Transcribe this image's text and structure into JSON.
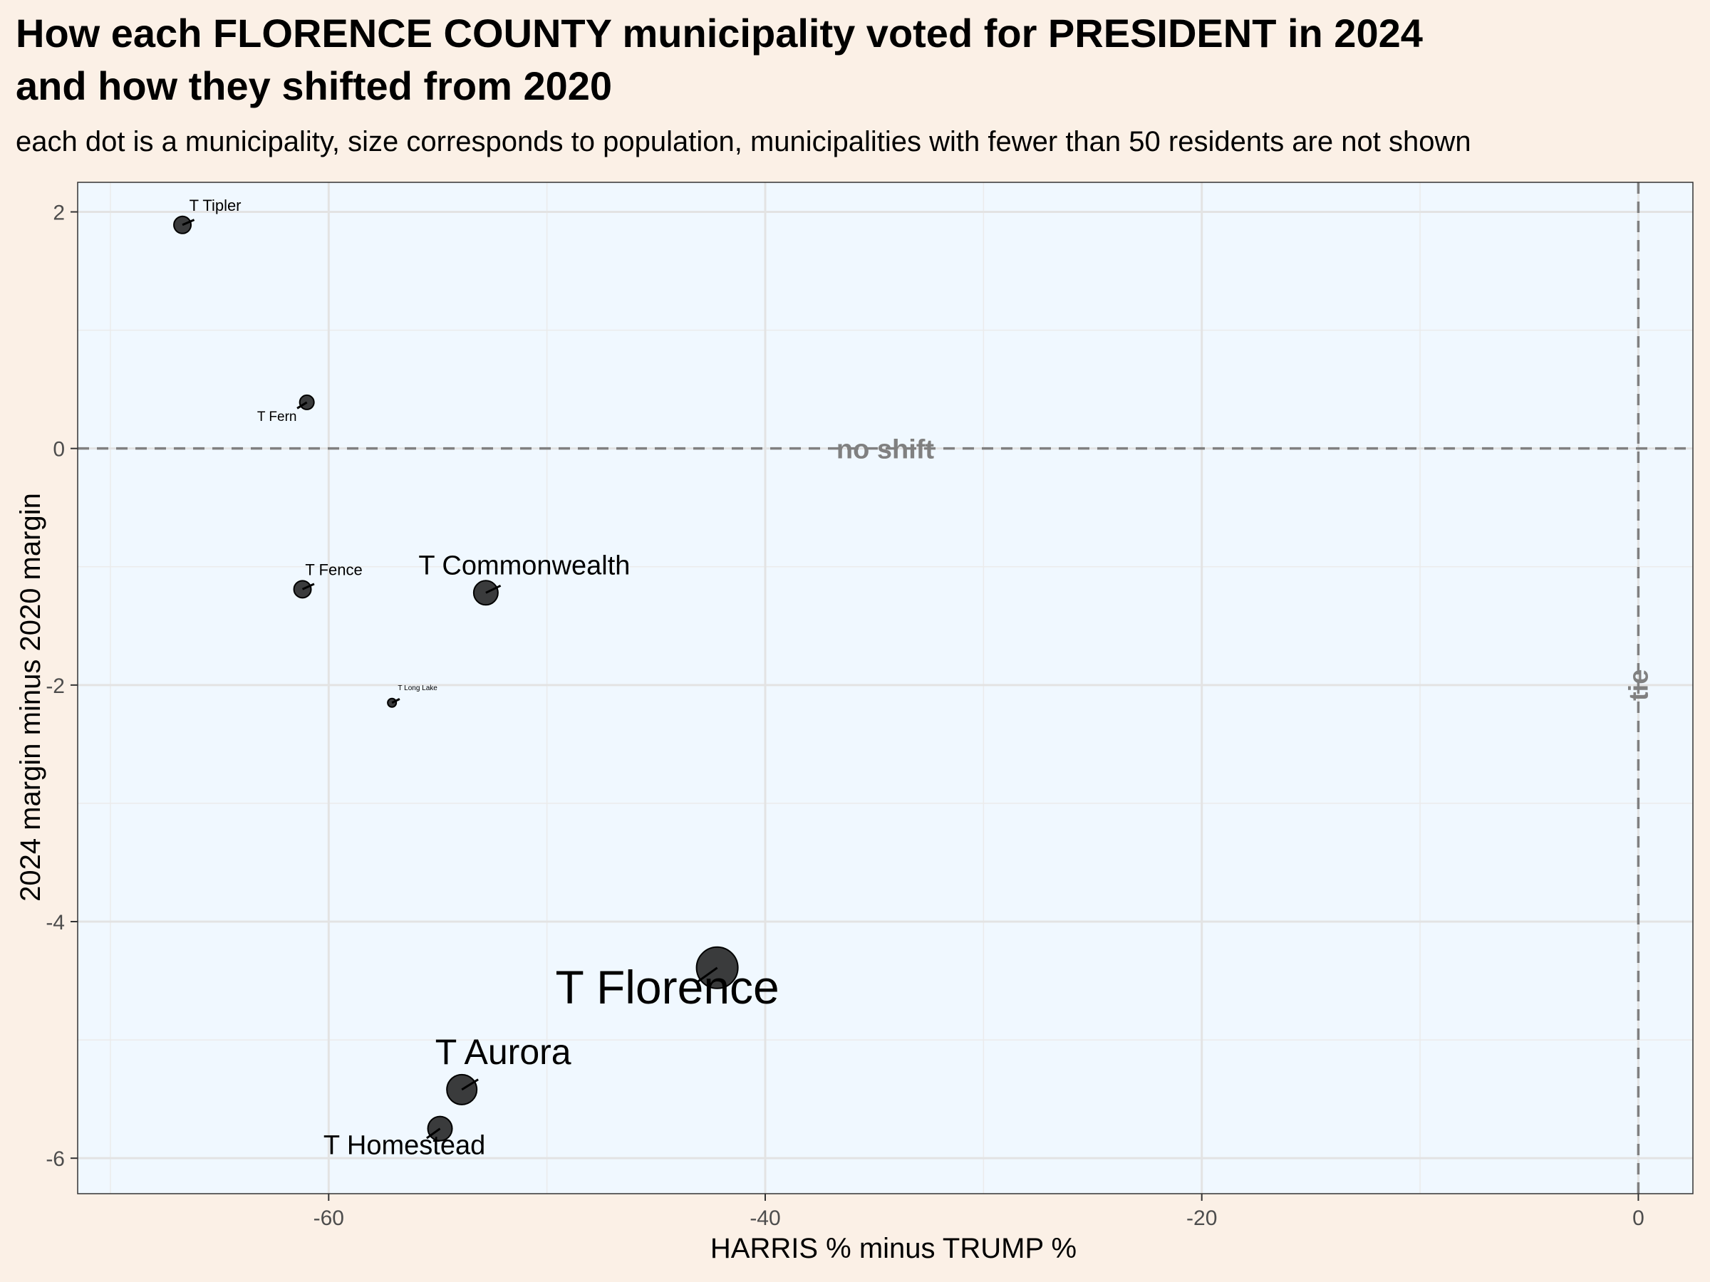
{
  "chart_data": {
    "type": "scatter",
    "title_line1": "How each FLORENCE COUNTY municipality voted for PRESIDENT in 2024",
    "title_line2": "and how they shifted from 2020",
    "subtitle": "each dot is a municipality, size corresponds to population, municipalities with fewer than 50 residents are not shown",
    "xlabel": "HARRIS % minus TRUMP %",
    "ylabel": "2024 margin minus 2020 margin",
    "xlim": [
      -71.5,
      2.5
    ],
    "ylim": [
      -6.3,
      2.25
    ],
    "xticks": [
      -60,
      -40,
      -20,
      0
    ],
    "yticks": [
      2,
      0,
      -2,
      -4,
      -6
    ],
    "grid": true,
    "colors": {
      "plot_bg": "#f0f8ff",
      "page_bg": "#fbf0e6",
      "point": "#1a1a1a",
      "reference": "#808080"
    },
    "reference_lines": [
      {
        "axis": "y",
        "value": 0,
        "label": "no shift"
      },
      {
        "axis": "x",
        "value": 0,
        "label": "tie"
      }
    ],
    "points": [
      {
        "name": "T Tipler",
        "x": -66.7,
        "y": 1.89,
        "size": "small"
      },
      {
        "name": "T Fern",
        "x": -61.0,
        "y": 0.39,
        "size": "xsmall"
      },
      {
        "name": "T Fence",
        "x": -61.2,
        "y": -1.19,
        "size": "small"
      },
      {
        "name": "T Commonwealth",
        "x": -52.8,
        "y": -1.22,
        "size": "medium"
      },
      {
        "name": "T Long Lake",
        "x": -57.1,
        "y": -2.15,
        "size": "tiny"
      },
      {
        "name": "T Florence",
        "x": -42.2,
        "y": -4.39,
        "size": "xlarge"
      },
      {
        "name": "T Aurora",
        "x": -53.9,
        "y": -5.42,
        "size": "large"
      },
      {
        "name": "T Homestead",
        "x": -54.9,
        "y": -5.75,
        "size": "medium"
      }
    ]
  }
}
